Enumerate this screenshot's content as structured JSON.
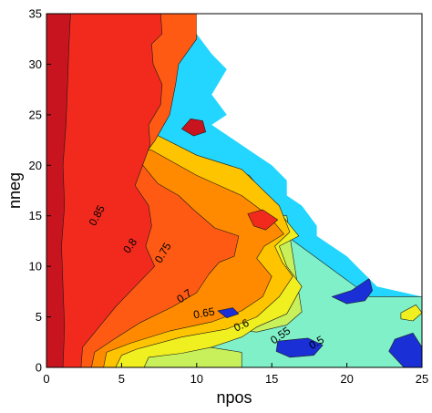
{
  "chart_data": {
    "type": "contour",
    "xlabel": "npos",
    "ylabel": "nneg",
    "xlim": [
      0,
      25
    ],
    "ylim": [
      0,
      35
    ],
    "xticks": [
      "0",
      "5",
      "10",
      "15",
      "20",
      "25"
    ],
    "yticks": [
      "0",
      "5",
      "10",
      "15",
      "20",
      "25",
      "30",
      "35"
    ],
    "levels": [
      0.45,
      0.5,
      0.55,
      0.6,
      0.65,
      0.7,
      0.75,
      0.8,
      0.85,
      0.9
    ],
    "level_colors": [
      "#1a2fd6",
      "#22d6ff",
      "#7ff0c8",
      "#c8f05a",
      "#f0f020",
      "#ffc400",
      "#ff8a00",
      "#ff5a14",
      "#f22a1e",
      "#c8141e"
    ],
    "contour_labels": [
      {
        "text": "0.85",
        "x": 3.4,
        "y": 15.0,
        "angle": -62
      },
      {
        "text": "0.8",
        "x": 5.6,
        "y": 12.0,
        "angle": -55
      },
      {
        "text": "0.75",
        "x": 7.8,
        "y": 11.3,
        "angle": -60
      },
      {
        "text": "0.7",
        "x": 9.2,
        "y": 7.0,
        "angle": -35
      },
      {
        "text": "0.65",
        "x": 10.5,
        "y": 5.3,
        "angle": -10
      },
      {
        "text": "0.6",
        "x": 13.0,
        "y": 4.1,
        "angle": -25
      },
      {
        "text": "0.55",
        "x": 15.6,
        "y": 3.1,
        "angle": -35
      },
      {
        "text": "0.5",
        "x": 18.0,
        "y": 2.4,
        "angle": -30
      }
    ],
    "regions": [
      {
        "level": 0.55,
        "points": [
          [
            0,
            0
          ],
          [
            25,
            0
          ],
          [
            25,
            7
          ],
          [
            21.5,
            7
          ],
          [
            16,
            13
          ],
          [
            5,
            13
          ],
          [
            0,
            13
          ]
        ]
      },
      {
        "level": 0.6,
        "points": [
          [
            0,
            0
          ],
          [
            13,
            0
          ],
          [
            13,
            1.5
          ],
          [
            10,
            2.2
          ],
          [
            7,
            2.7
          ],
          [
            6,
            3.6
          ],
          [
            8,
            4
          ],
          [
            11,
            4
          ],
          [
            14,
            3.5
          ],
          [
            16,
            4.2
          ],
          [
            17,
            5.5
          ],
          [
            16.2,
            13
          ],
          [
            16,
            15
          ],
          [
            10,
            16
          ],
          [
            5,
            17
          ],
          [
            0,
            17
          ]
        ]
      },
      {
        "level": 0.65,
        "points": [
          [
            0,
            0
          ],
          [
            6.5,
            0
          ],
          [
            6.8,
            1
          ],
          [
            9,
            1.4
          ],
          [
            11,
            2
          ],
          [
            13,
            3
          ],
          [
            14,
            4
          ],
          [
            16,
            5.3
          ],
          [
            17,
            8
          ],
          [
            16,
            10
          ],
          [
            15.5,
            12
          ],
          [
            16.8,
            13
          ],
          [
            13.5,
            19
          ],
          [
            8,
            22
          ],
          [
            3,
            26
          ],
          [
            0,
            26
          ]
        ]
      },
      {
        "level": 0.7,
        "points": [
          [
            0,
            0
          ],
          [
            4.6,
            0
          ],
          [
            5,
            1.2
          ],
          [
            6,
            1.8
          ],
          [
            9,
            3
          ],
          [
            12,
            3.8
          ],
          [
            14,
            5
          ],
          [
            15.5,
            7
          ],
          [
            16.4,
            9
          ],
          [
            15.7,
            10.4
          ],
          [
            15.2,
            12
          ],
          [
            16.2,
            13.4
          ],
          [
            15.5,
            16
          ],
          [
            13,
            19.6
          ],
          [
            10,
            21
          ],
          [
            6,
            24
          ],
          [
            0,
            24
          ]
        ]
      },
      {
        "level": 0.75,
        "points": [
          [
            0,
            0
          ],
          [
            3.8,
            0
          ],
          [
            4,
            1.5
          ],
          [
            5.6,
            2.4
          ],
          [
            8.2,
            3.6
          ],
          [
            11,
            4.5
          ],
          [
            13,
            5.6
          ],
          [
            14.4,
            7
          ],
          [
            15,
            9
          ],
          [
            14,
            10.8
          ],
          [
            14.5,
            12
          ],
          [
            15.8,
            13.2
          ],
          [
            14.8,
            15
          ],
          [
            13,
            17
          ],
          [
            10,
            19
          ],
          [
            7,
            21.5
          ],
          [
            0,
            21.5
          ]
        ]
      },
      {
        "level": 0.8,
        "points": [
          [
            0,
            0
          ],
          [
            3,
            0
          ],
          [
            3.2,
            1.5
          ],
          [
            4.5,
            2.8
          ],
          [
            6.2,
            4.4
          ],
          [
            8.4,
            6
          ],
          [
            10,
            7.4
          ],
          [
            10.8,
            9.2
          ],
          [
            11.5,
            10.4
          ],
          [
            12.5,
            11
          ],
          [
            12.8,
            13
          ],
          [
            11.2,
            13.8
          ],
          [
            9.8,
            15.6
          ],
          [
            8.8,
            17
          ],
          [
            7.4,
            18.2
          ],
          [
            6.2,
            20.4
          ],
          [
            7.2,
            22.4
          ],
          [
            8.2,
            25
          ],
          [
            8.6,
            28
          ],
          [
            8.8,
            30
          ],
          [
            10,
            32.5
          ],
          [
            10,
            35
          ],
          [
            0,
            35
          ]
        ]
      },
      {
        "level": 0.85,
        "points": [
          [
            0,
            0
          ],
          [
            2.3,
            0
          ],
          [
            2.4,
            2
          ],
          [
            3.5,
            4
          ],
          [
            4.6,
            6
          ],
          [
            5.9,
            8
          ],
          [
            7.2,
            10
          ],
          [
            6.6,
            12
          ],
          [
            7,
            14
          ],
          [
            6.8,
            16
          ],
          [
            5.9,
            18
          ],
          [
            6.4,
            20
          ],
          [
            6.9,
            22
          ],
          [
            6.8,
            24
          ],
          [
            7.6,
            26
          ],
          [
            7.7,
            28
          ],
          [
            7.1,
            30
          ],
          [
            7,
            32
          ],
          [
            7.7,
            33
          ],
          [
            7.6,
            35
          ],
          [
            0,
            35
          ]
        ]
      },
      {
        "level": 0.9,
        "points": [
          [
            0,
            0
          ],
          [
            1.1,
            0
          ],
          [
            1.2,
            4
          ],
          [
            1.1,
            8
          ],
          [
            1.0,
            12
          ],
          [
            1.2,
            16
          ],
          [
            1.1,
            20
          ],
          [
            1.3,
            24
          ],
          [
            1.4,
            28
          ],
          [
            1.5,
            32
          ],
          [
            1.6,
            35
          ],
          [
            0,
            35
          ]
        ]
      },
      {
        "level": 0.9,
        "points": [
          [
            9.0,
            23.6
          ],
          [
            9.6,
            24.6
          ],
          [
            10.4,
            24.4
          ],
          [
            10.6,
            23.3
          ],
          [
            9.8,
            22.9
          ]
        ]
      },
      {
        "level": 0.85,
        "points": [
          [
            13.4,
            15.2
          ],
          [
            14.4,
            15.6
          ],
          [
            15.4,
            14.6
          ],
          [
            14.6,
            13.6
          ],
          [
            13.8,
            14
          ]
        ]
      },
      {
        "level": 0.45,
        "points": [
          [
            19,
            7
          ],
          [
            20.3,
            7.6
          ],
          [
            21.5,
            8.8
          ],
          [
            21.7,
            7.6
          ],
          [
            21.2,
            6.6
          ],
          [
            20,
            6.3
          ]
        ]
      },
      {
        "level": 0.45,
        "points": [
          [
            15.4,
            2.6
          ],
          [
            17.4,
            2.9
          ],
          [
            18.4,
            2.2
          ],
          [
            17.8,
            1.2
          ],
          [
            16.2,
            1
          ],
          [
            15.3,
            1.6
          ]
        ]
      },
      {
        "level": 0.45,
        "points": [
          [
            23.8,
            0
          ],
          [
            25,
            0
          ],
          [
            25,
            2
          ],
          [
            24.4,
            3.4
          ],
          [
            23.2,
            2.8
          ],
          [
            22.8,
            1.6
          ]
        ]
      },
      {
        "level": 0.45,
        "points": [
          [
            11.4,
            5.6
          ],
          [
            12.4,
            5.9
          ],
          [
            12.8,
            5.3
          ],
          [
            12,
            4.9
          ]
        ]
      },
      {
        "level": 0.65,
        "points": [
          [
            23.6,
            5.4
          ],
          [
            24.6,
            6.2
          ],
          [
            25,
            5.4
          ],
          [
            24.4,
            4.6
          ],
          [
            23.6,
            4.8
          ]
        ]
      }
    ]
  }
}
